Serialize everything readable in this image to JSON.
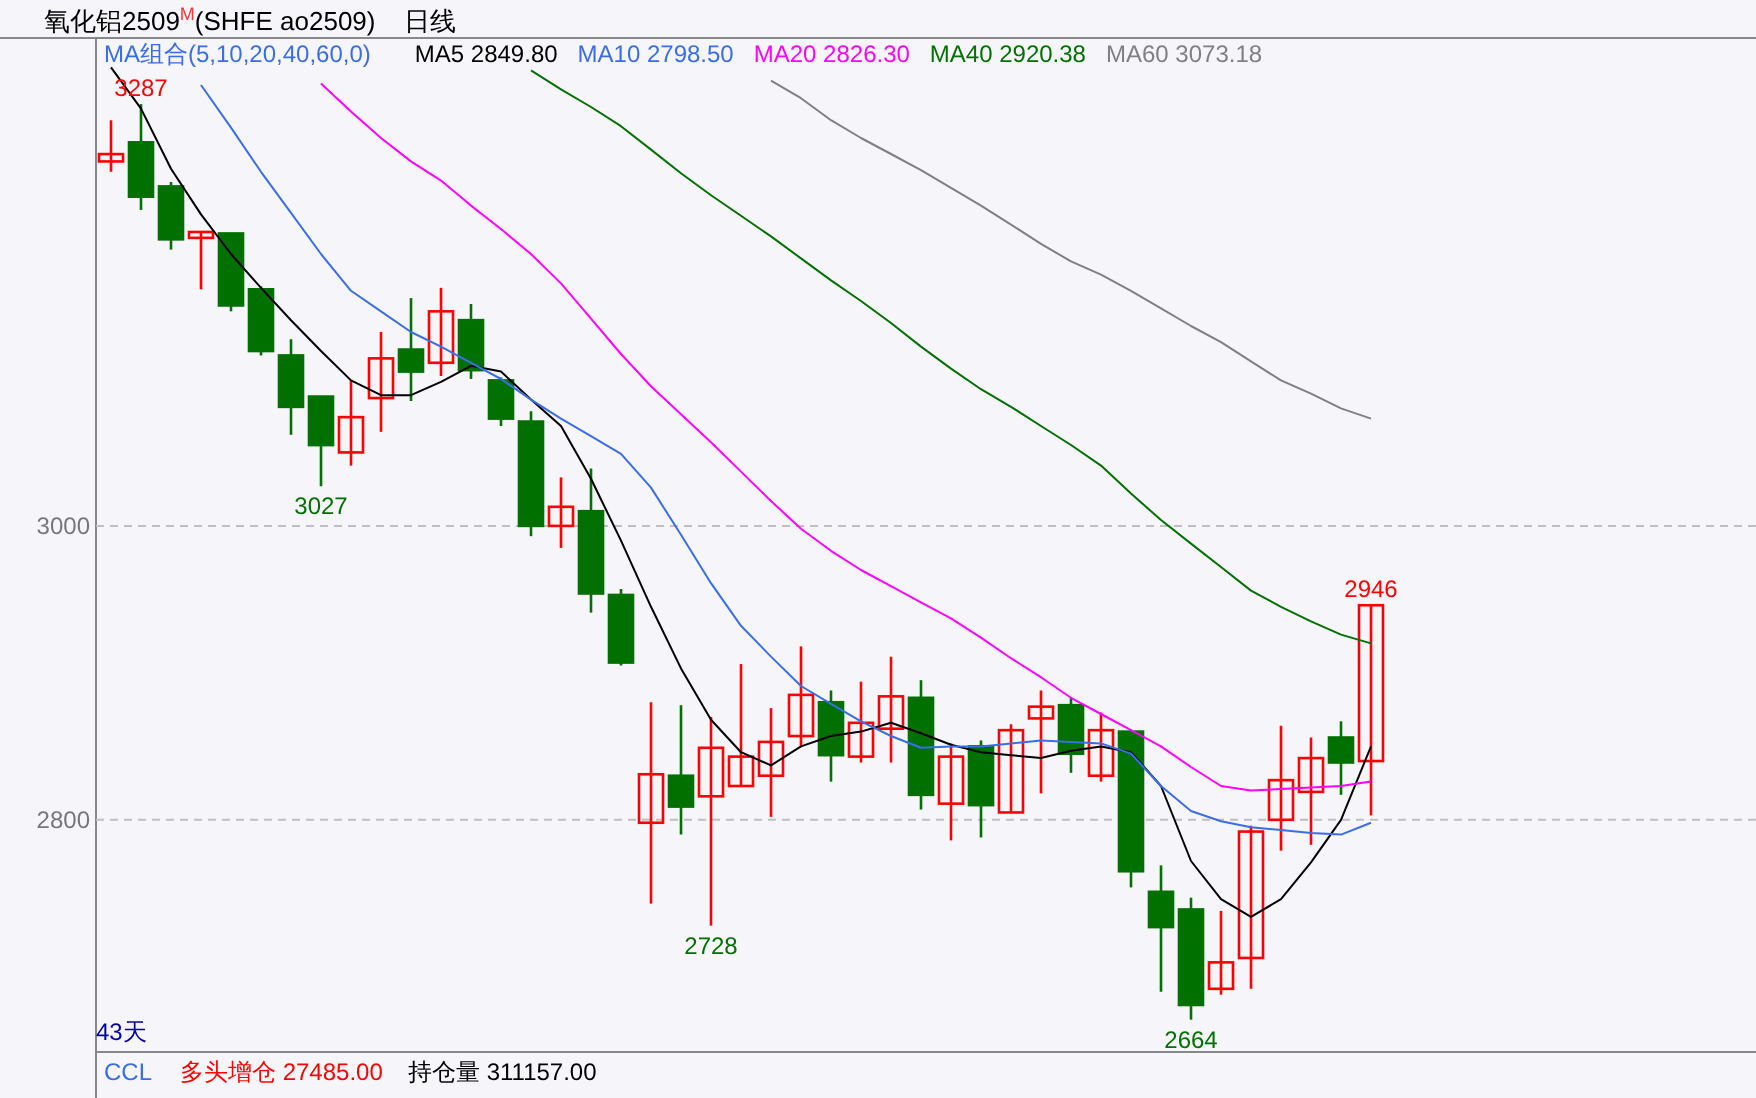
{
  "chart_data": {
    "type": "candlestick",
    "title": "氧化铝2509$^{M}$(SHFE ao2509)",
    "subtitle": "日线",
    "legend_title": "MA组合(5,10,20,40,60,0)",
    "legend": "top",
    "grid": "y",
    "categories": [
      null,
      null,
      null,
      null,
      null,
      null,
      null,
      null,
      null,
      null,
      null,
      null,
      null,
      null,
      null,
      null,
      null,
      null,
      null,
      null,
      null,
      null,
      null,
      null,
      null,
      null,
      null,
      null,
      null,
      null,
      null,
      null,
      null,
      null,
      null,
      null,
      null,
      null,
      null,
      null,
      null,
      null,
      null
    ],
    "ohlc": [
      [
        3248,
        3276,
        3241,
        3253
      ],
      [
        3261,
        3287,
        3215,
        3224
      ],
      [
        3231,
        3234,
        3188,
        3195
      ],
      [
        3196,
        3200,
        3161,
        3200
      ],
      [
        3199,
        3199,
        3146,
        3150
      ],
      [
        3161,
        3163,
        3116,
        3119
      ],
      [
        3116,
        3127,
        3062,
        3081
      ],
      [
        3088,
        3088,
        3027,
        3055
      ],
      [
        3050,
        3099,
        3041,
        3074
      ],
      [
        3087,
        3132,
        3064,
        3114
      ],
      [
        3120,
        3155,
        3085,
        3105
      ],
      [
        3111,
        3162,
        3102,
        3146
      ],
      [
        3140,
        3151,
        3100,
        3106
      ],
      [
        3099,
        3101,
        3068,
        3073
      ],
      [
        3071,
        3078,
        2993,
        3000
      ],
      [
        3000,
        3033,
        2985,
        3013
      ],
      [
        3010,
        3039,
        2941,
        2954
      ],
      [
        2953,
        2957,
        2905,
        2907
      ],
      [
        2798,
        2880,
        2743,
        2831
      ],
      [
        2830,
        2878,
        2790,
        2809
      ],
      [
        2816,
        2870,
        2728,
        2849
      ],
      [
        2823,
        2906,
        2823,
        2843
      ],
      [
        2830,
        2876,
        2802,
        2853
      ],
      [
        2857,
        2918,
        2850,
        2885
      ],
      [
        2880,
        2888,
        2826,
        2844
      ],
      [
        2843,
        2894,
        2839,
        2866
      ],
      [
        2862,
        2911,
        2839,
        2884
      ],
      [
        2883,
        2895,
        2807,
        2817
      ],
      [
        2811,
        2852,
        2786,
        2843
      ],
      [
        2850,
        2854,
        2788,
        2810
      ],
      [
        2805,
        2865,
        2805,
        2861
      ],
      [
        2869,
        2888,
        2818,
        2877
      ],
      [
        2878,
        2883,
        2832,
        2845
      ],
      [
        2830,
        2873,
        2826,
        2861
      ],
      [
        2860,
        2860,
        2754,
        2765
      ],
      [
        2751,
        2769,
        2683,
        2727
      ],
      [
        2739,
        2747,
        2664,
        2674
      ],
      [
        2685,
        2738,
        2681,
        2703
      ],
      [
        2706,
        2796,
        2685,
        2792
      ],
      [
        2800,
        2864,
        2779,
        2827
      ],
      [
        2819,
        2856,
        2783,
        2842
      ],
      [
        2856,
        2867,
        2817,
        2839
      ],
      [
        2840,
        2946,
        2803,
        2946
      ]
    ],
    "colors": [
      "#ff0000",
      "#007000",
      "#007000",
      "#ff0000",
      "#007000",
      "#007000",
      "#007000",
      "#007000",
      "#ff0000",
      "#ff0000",
      "#007000",
      "#ff0000",
      "#007000",
      "#007000",
      "#007000",
      "#ff0000",
      "#007000",
      "#007000",
      "#ff0000",
      "#007000",
      "#ff0000",
      "#ff0000",
      "#ff0000",
      "#ff0000",
      "#007000",
      "#ff0000",
      "#ff0000",
      "#007000",
      "#ff0000",
      "#007000",
      "#ff0000",
      "#ff0000",
      "#007000",
      "#ff0000",
      "#007000",
      "#007000",
      "#007000",
      "#ff0000",
      "#ff0000",
      "#ff0000",
      "#ff0000",
      "#007000",
      "#ff0000"
    ],
    "series": [
      {
        "name": "MA5 2849.80",
        "type": "line",
        "color": "#000000",
        "values": [
          3312,
          3284,
          3243,
          3212,
          3185,
          3162,
          3140,
          3119,
          3099,
          3089,
          3089,
          3098,
          3109,
          3105,
          3086,
          3068,
          3032,
          2990,
          2945,
          2903,
          2868,
          2846,
          2837,
          2850,
          2857,
          2860,
          2866,
          2859,
          2851,
          2846,
          2844,
          2842,
          2847,
          2850,
          2846,
          2823,
          2772,
          2746,
          2734,
          2746,
          2771,
          2800,
          2850
        ]
      },
      {
        "name": "MA10 2798.50",
        "type": "line",
        "color": "#3a6ee8",
        "values": [
          null,
          null,
          null,
          3300,
          3271,
          3241,
          3213,
          3185,
          3160,
          3146,
          3132,
          3122,
          3111,
          3100,
          3086,
          3073,
          3061,
          3049,
          3026,
          2994,
          2961,
          2932,
          2911,
          2891,
          2879,
          2867,
          2857,
          2849,
          2850,
          2850,
          2852,
          2854,
          2853,
          2852,
          2845,
          2823,
          2806,
          2799,
          2795,
          2793,
          2791,
          2790,
          2798
        ]
      },
      {
        "name": "MA20 2826.30",
        "type": "line",
        "color": "#ff00ff",
        "values": [
          null,
          null,
          null,
          null,
          null,
          null,
          null,
          3301,
          3282,
          3264,
          3248,
          3235,
          3218,
          3202,
          3185,
          3165,
          3141,
          3117,
          3095,
          3076,
          3057,
          3037,
          3017,
          2998,
          2983,
          2970,
          2959,
          2948,
          2937,
          2924,
          2910,
          2897,
          2883,
          2872,
          2861,
          2850,
          2836,
          2823,
          2820,
          2821,
          2822,
          2823,
          2826
        ]
      },
      {
        "name": "MA40 2920.38",
        "type": "line",
        "color": "#007000",
        "values": [
          null,
          null,
          null,
          null,
          null,
          null,
          null,
          null,
          null,
          null,
          null,
          null,
          null,
          null,
          3310,
          3297,
          3285,
          3272,
          3256,
          3240,
          3225,
          3211,
          3197,
          3182,
          3167,
          3153,
          3138,
          3122,
          3107,
          3093,
          3081,
          3068,
          3055,
          3041,
          3022,
          3004,
          2988,
          2972,
          2956,
          2945,
          2935,
          2926,
          2920
        ]
      },
      {
        "name": "MA60 3073.18",
        "type": "line",
        "color": "#808080",
        "values": [
          null,
          null,
          null,
          null,
          null,
          null,
          null,
          null,
          null,
          null,
          null,
          null,
          null,
          null,
          null,
          null,
          null,
          null,
          null,
          null,
          null,
          null,
          3303,
          3291,
          3276,
          3264,
          3253,
          3242,
          3230,
          3218,
          3205,
          3192,
          3180,
          3171,
          3160,
          3148,
          3136,
          3125,
          3112,
          3099,
          3090,
          3080,
          3073
        ]
      }
    ],
    "ylim": [
      2642,
      3332
    ],
    "yticks": [
      2800,
      3000
    ],
    "annotations": [
      {
        "text": "3287",
        "y": 3287
      },
      {
        "text": "3027",
        "y": 3027
      },
      {
        "text": "2728",
        "y": 2728
      },
      {
        "text": "2664",
        "y": 2664
      },
      {
        "text": "2946",
        "y": 2946
      },
      "43天",
      "CCL",
      "多头增仓 27485.00",
      "持仓量 311157.00"
    ]
  }
}
